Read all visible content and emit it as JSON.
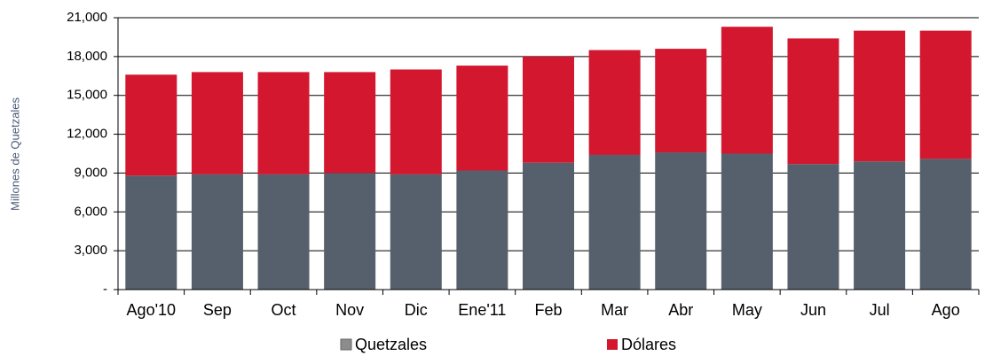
{
  "chart_data": {
    "type": "stacked_bar",
    "y_label": "Millones de Quetzales",
    "categories": [
      "Ago'10",
      "Sep",
      "Oct",
      "Nov",
      "Dic",
      "Ene'11",
      "Feb",
      "Mar",
      "Abr",
      "May",
      "Jun",
      "Jul",
      "Ago"
    ],
    "series": [
      {
        "name": "Quetzales",
        "color": "#56606c",
        "values": [
          8800,
          8900,
          8900,
          9000,
          8900,
          9200,
          9800,
          10400,
          10600,
          10500,
          9700,
          9900,
          10100
        ]
      },
      {
        "name": "Dólares",
        "color": "#d2172f",
        "values": [
          7800,
          7900,
          7900,
          7800,
          8100,
          8100,
          8200,
          8100,
          8000,
          9800,
          9700,
          10100,
          9900
        ]
      }
    ],
    "ylim": [
      0,
      21000
    ],
    "yticks": [
      {
        "value": 0,
        "label": "-"
      },
      {
        "value": 3000,
        "label": "3,000"
      },
      {
        "value": 6000,
        "label": "6,000"
      },
      {
        "value": 9000,
        "label": "9,000"
      },
      {
        "value": 12000,
        "label": "12,000"
      },
      {
        "value": 15000,
        "label": "15,000"
      },
      {
        "value": 18000,
        "label": "18,000"
      },
      {
        "value": 21000,
        "label": "21,000"
      }
    ],
    "grid": true
  }
}
